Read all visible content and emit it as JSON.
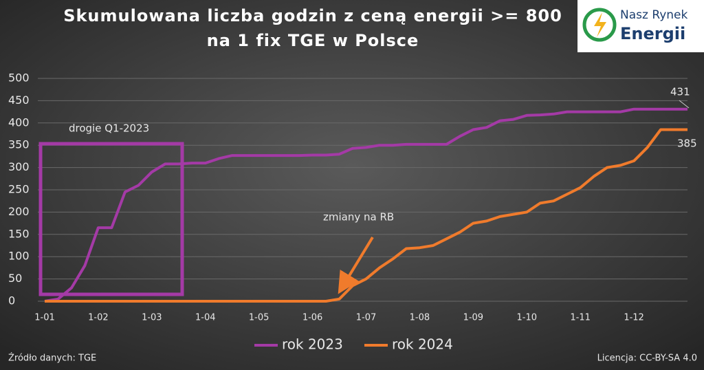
{
  "chart_data": {
    "type": "line",
    "title": "Skumulowana liczba godzin z ceną energii >= 800",
    "subtitle": "na 1 fix TGE w Polsce",
    "logo": [
      "Nasz Rynek",
      "Energii"
    ],
    "categories": [
      "1-01",
      null,
      null,
      null,
      "1-02",
      null,
      null,
      null,
      "1-03",
      null,
      null,
      null,
      "1-04",
      null,
      null,
      null,
      "1-05",
      null,
      null,
      null,
      "1-06",
      null,
      null,
      null,
      "1-07",
      null,
      null,
      null,
      "1-08",
      null,
      null,
      null,
      "1-09",
      null,
      null,
      null,
      "1-10",
      null,
      null,
      null,
      "1-11",
      null,
      null,
      null,
      "1-12",
      null,
      null,
      null,
      null
    ],
    "series": [
      {
        "name": "rok 2023",
        "color": "#a43aa6",
        "values": [
          0,
          5,
          30,
          80,
          165,
          165,
          245,
          260,
          290,
          308,
          308,
          310,
          310,
          320,
          327,
          327,
          327,
          327,
          327,
          327,
          328,
          328,
          330,
          343,
          345,
          350,
          350,
          352,
          352,
          352,
          352,
          370,
          385,
          390,
          405,
          408,
          417,
          418,
          420,
          425,
          425,
          425,
          425,
          425,
          431,
          431,
          431,
          431,
          431
        ]
      },
      {
        "name": "rok 2024",
        "color": "#f07b2c",
        "values": [
          0,
          0,
          0,
          0,
          0,
          0,
          0,
          0,
          0,
          0,
          0,
          0,
          0,
          0,
          0,
          0,
          0,
          0,
          0,
          0,
          0,
          0,
          5,
          35,
          50,
          75,
          95,
          118,
          120,
          125,
          140,
          155,
          175,
          180,
          190,
          195,
          200,
          220,
          225,
          240,
          255,
          280,
          300,
          305,
          315,
          345,
          385,
          385,
          385
        ]
      }
    ],
    "ylim": [
      0,
      500
    ],
    "yticks": [
      0,
      50,
      100,
      150,
      200,
      250,
      300,
      350,
      400,
      450,
      500
    ],
    "grid": true,
    "annotations": [
      "431",
      "385",
      "drogie Q1-2023",
      "zmiany na RB"
    ],
    "source": "Źródło danych: TGE",
    "license": "Licencja: CC-BY-SA 4.0"
  }
}
